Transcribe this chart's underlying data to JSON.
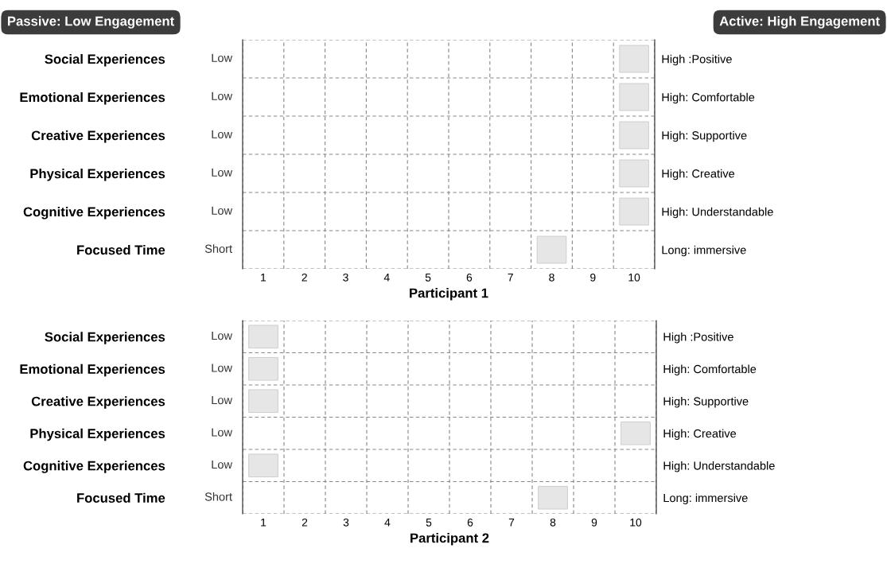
{
  "chart_data": [
    {
      "type": "scatter",
      "orientation": "horizontal",
      "marker": "square",
      "grid": true,
      "xlabel": "Participant 1",
      "categories": [
        "Social Experiences",
        "Emotional Experiences",
        "Creative Experiences",
        "Physical Experiences",
        "Cognitive Experiences",
        "Focused Time"
      ],
      "y2_categories": [
        "High :Positive",
        "High: Comfortable",
        "High: Supportive",
        "High: Creative",
        "High: Understandable",
        "Long: immersive"
      ],
      "values": [
        10,
        10,
        10,
        10,
        10,
        8
      ],
      "color": "#e6e6e6",
      "xlim": [
        0.5,
        10.5
      ],
      "xticks": [
        1,
        2,
        3,
        4,
        5,
        6,
        7,
        8,
        9,
        10
      ],
      "annotations": [
        "Passive: Low Engagement",
        "Active: High Engagement",
        "Low",
        "Low",
        "Low",
        "Low",
        "Low",
        "Short"
      ]
    },
    {
      "type": "scatter",
      "orientation": "horizontal",
      "marker": "square",
      "grid": true,
      "xlabel": "Participant 2",
      "categories": [
        "Social Experiences",
        "Emotional Experiences",
        "Creative Experiences",
        "Physical Experiences",
        "Cognitive Experiences",
        "Focused Time"
      ],
      "y2_categories": [
        "High :Positive",
        "High: Comfortable",
        "High: Supportive",
        "High: Creative",
        "High: Understandable",
        "Long: immersive"
      ],
      "values": [
        1,
        1,
        1,
        10,
        1,
        8
      ],
      "color": "#e6e6e6",
      "xlim": [
        0.5,
        10.5
      ],
      "xticks": [
        1,
        2,
        3,
        4,
        5,
        6,
        7,
        8,
        9,
        10
      ],
      "annotations": [
        "Low",
        "Low",
        "Low",
        "Low",
        "Low",
        "Short"
      ]
    }
  ]
}
